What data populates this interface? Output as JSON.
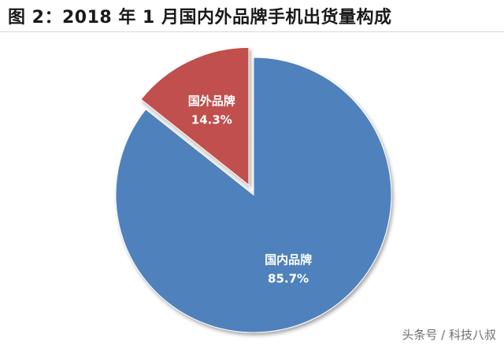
{
  "chart_data": {
    "type": "pie",
    "title": "图 2：2018 年 1 月国内外品牌手机出货量构成",
    "slices": [
      {
        "label": "国内品牌",
        "value": 85.7,
        "value_label": "85.7%",
        "color": "#4f81bd"
      },
      {
        "label": "国外品牌",
        "value": 14.3,
        "value_label": "14.3%",
        "color": "#c0504d"
      }
    ],
    "exploded_slice": "国外品牌",
    "legend": "none"
  },
  "watermark": "头条号 / 科技八叔"
}
